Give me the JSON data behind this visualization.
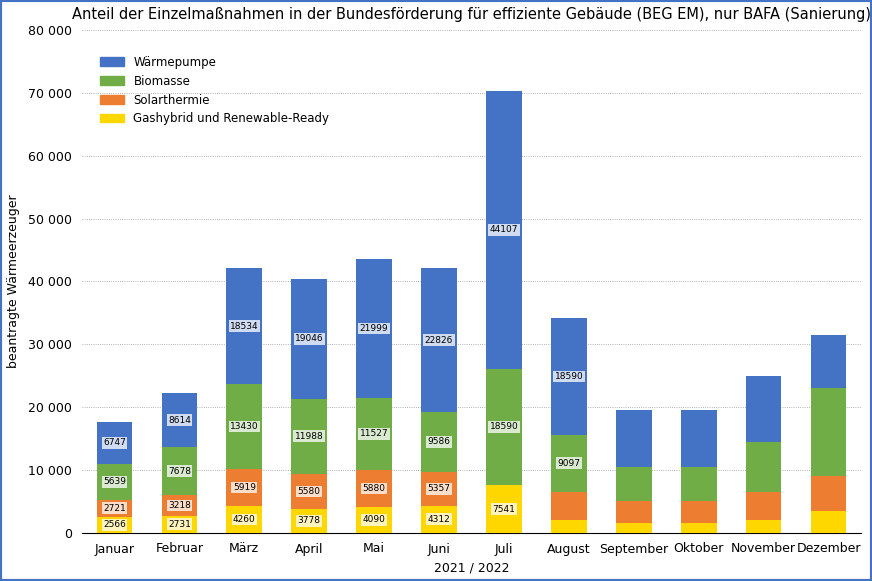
{
  "title": "Anteil der Einzelmaßnahmen in der Bundesförderung für effiziente Gebäude (BEG EM), nur BAFA (Sanierung)",
  "xlabel": "2021 / 2022",
  "ylabel": "beantragte Wärmeerzeuger",
  "categories": [
    "Januar",
    "Februar",
    "März",
    "April",
    "Mai",
    "Juni",
    "Juli",
    "August",
    "September",
    "Oktober",
    "November",
    "Dezember"
  ],
  "warme": [
    6747,
    8614,
    18534,
    19046,
    21999,
    22826,
    44107,
    18590,
    9097,
    9097,
    10500,
    8500
  ],
  "biomasse": [
    5639,
    7678,
    13430,
    11988,
    11527,
    9586,
    18590,
    9097,
    5500,
    5500,
    8000,
    14000
  ],
  "solar": [
    2721,
    3218,
    5919,
    5580,
    5880,
    5357,
    0,
    4500,
    3500,
    3500,
    4500,
    5500
  ],
  "gashybrid": [
    2566,
    2731,
    4260,
    3778,
    4090,
    4312,
    7541,
    2000,
    1500,
    1500,
    2000,
    3500
  ],
  "ann_warme": [
    6747,
    8614,
    18534,
    19046,
    21999,
    22826,
    44107,
    18590,
    null,
    null,
    null,
    null
  ],
  "ann_biomasse": [
    5639,
    7678,
    13430,
    11988,
    11527,
    9586,
    18590,
    9097,
    null,
    null,
    null,
    null
  ],
  "ann_solar": [
    2721,
    3218,
    5919,
    5580,
    5880,
    5357,
    null,
    null,
    null,
    null,
    null,
    null
  ],
  "ann_gas": [
    2566,
    2731,
    4260,
    3778,
    4090,
    4312,
    7541,
    null,
    null,
    null,
    null,
    null
  ],
  "colors": {
    "Wärmepumpe": "#4472C4",
    "Biomasse": "#70AD47",
    "Solarthermie": "#ED7D31",
    "Gashybrid und Renewable-Ready": "#FFD700"
  },
  "ylim": [
    0,
    80000
  ],
  "ytick_vals": [
    0,
    10000,
    20000,
    30000,
    40000,
    50000,
    60000,
    70000,
    80000
  ],
  "ytick_labels": [
    "0",
    "10 000",
    "20 000",
    "30 000",
    "40 000",
    "50 000",
    "60 000",
    "70 000",
    "80 000"
  ],
  "background_color": "#FFFFFF",
  "border_color": "#4472C4",
  "grid_color": "#999999",
  "title_fontsize": 10.5,
  "axis_fontsize": 9,
  "tick_fontsize": 9,
  "ann_fontsize": 6.5,
  "bar_width": 0.55
}
